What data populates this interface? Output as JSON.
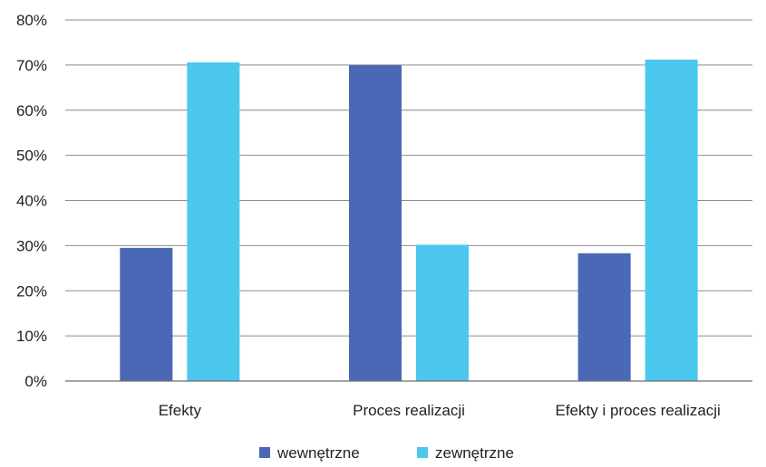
{
  "chart_data": {
    "type": "bar",
    "categories": [
      "Efekty",
      "Proces realizacji",
      "Efekty i proces realizacji"
    ],
    "series": [
      {
        "name": "wewnętrzne",
        "values": [
          29.5,
          70,
          28.3
        ],
        "color": "#4a68b5"
      },
      {
        "name": "zewnętrzne",
        "values": [
          70.6,
          30.2,
          71.2
        ],
        "color": "#4cc8ef"
      }
    ],
    "yticks": [
      "0%",
      "10%",
      "20%",
      "30%",
      "40%",
      "50%",
      "60%",
      "70%",
      "80%"
    ],
    "ylim": [
      0,
      80
    ],
    "grid": true,
    "legend_position": "bottom",
    "title": "",
    "xlabel": "",
    "ylabel": ""
  }
}
